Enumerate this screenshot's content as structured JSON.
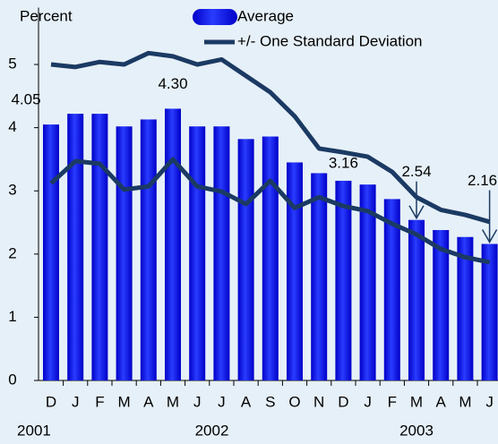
{
  "chart_data": {
    "type": "bar",
    "ylabel": "Percent",
    "categories": [
      "D",
      "J",
      "F",
      "M",
      "A",
      "M",
      "J",
      "J",
      "A",
      "S",
      "O",
      "N",
      "D",
      "J",
      "F",
      "M",
      "A",
      "M",
      "J"
    ],
    "years": [
      "2001",
      "2002",
      "2003"
    ],
    "ylim": [
      0,
      5.9
    ],
    "yticks": [
      0,
      1,
      2,
      3,
      4,
      5
    ],
    "series": [
      {
        "name": "Average",
        "type": "bar",
        "color": "#0a14f0",
        "values": [
          4.05,
          4.22,
          4.22,
          4.02,
          4.13,
          4.3,
          4.02,
          4.02,
          3.82,
          3.86,
          3.45,
          3.28,
          3.16,
          3.1,
          2.87,
          2.54,
          2.38,
          2.27,
          2.16
        ],
        "value_labels": [
          "4.05",
          null,
          null,
          null,
          null,
          "4.30",
          null,
          null,
          null,
          null,
          null,
          null,
          "3.16",
          null,
          null,
          "2.54",
          null,
          null,
          "2.16"
        ]
      },
      {
        "name": "+/- One Standard Deviation",
        "type": "line",
        "color": "#1b3a63",
        "values": [
          5.0,
          4.96,
          5.04,
          5.0,
          5.18,
          5.13,
          5.0,
          5.08,
          4.82,
          4.56,
          4.18,
          3.67,
          3.61,
          3.54,
          3.3,
          2.9,
          2.7,
          2.62,
          2.51
        ],
        "values_lower": [
          3.12,
          3.47,
          3.43,
          3.02,
          3.07,
          3.5,
          3.07,
          2.99,
          2.79,
          3.16,
          2.73,
          2.9,
          2.76,
          2.68,
          2.48,
          2.31,
          2.08,
          1.95,
          1.87
        ]
      }
    ]
  }
}
